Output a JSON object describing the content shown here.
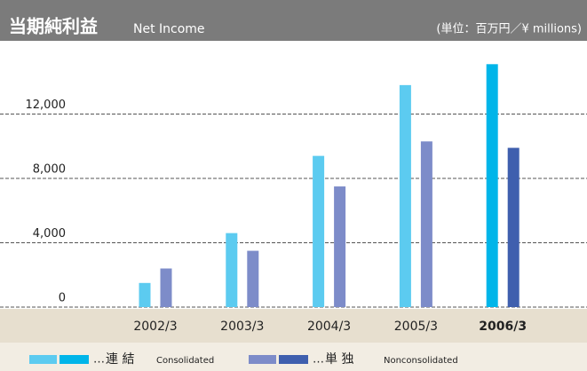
{
  "chart_data": {
    "type": "bar",
    "title": "当期純利益",
    "subtitle": "Net Income",
    "unit_label": "(単位：百万円／¥ millions)",
    "categories": [
      "2002/3",
      "2003/3",
      "2004/3",
      "2005/3",
      "2006/3"
    ],
    "bold_last_category": true,
    "series": [
      {
        "name": "連 結",
        "name_en": "Consolidated",
        "color": "#5ccbf0",
        "colors": [
          "#5ccbf0",
          "#5ccbf0",
          "#5ccbf0",
          "#5ccbf0",
          "#00b5e9"
        ],
        "values": [
          1500,
          4600,
          9400,
          13800,
          15100
        ]
      },
      {
        "name": "単 独",
        "name_en": "Nonconsolidated",
        "color": "#7d8cc9",
        "colors": [
          "#7d8cc9",
          "#7d8cc9",
          "#7d8cc9",
          "#7d8cc9",
          "#3f5fae"
        ],
        "values": [
          2400,
          3500,
          7500,
          10300,
          9900
        ]
      }
    ],
    "legend_marker": "…",
    "ylim": [
      0,
      16000
    ],
    "yticks": [
      0,
      {
        "value": 4000,
        "label": "4,000"
      },
      {
        "value": 8000,
        "label": "8,000"
      },
      {
        "value": 12000,
        "label": "12,000"
      }
    ],
    "grid": true
  }
}
